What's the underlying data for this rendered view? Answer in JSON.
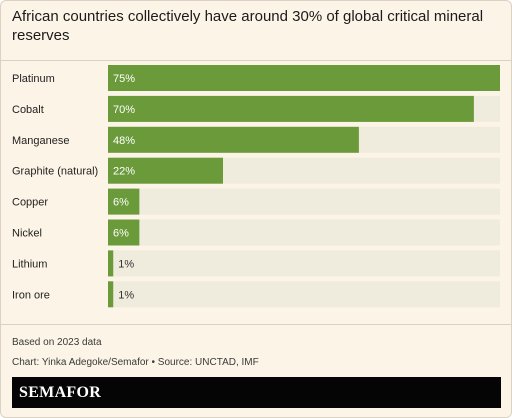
{
  "chart_data": {
    "type": "bar",
    "orientation": "horizontal",
    "title": "African countries collectively have around 30% of global critical mineral reserves",
    "categories": [
      "Platinum",
      "Cobalt",
      "Manganese",
      "Graphite (natural)",
      "Copper",
      "Nickel",
      "Lithium",
      "Iron ore"
    ],
    "values": [
      75,
      70,
      48,
      22,
      6,
      6,
      1,
      1
    ],
    "value_labels": [
      "75%",
      "70%",
      "48%",
      "22%",
      "6%",
      "6%",
      "1%",
      "1%"
    ],
    "xlim": [
      0,
      75
    ],
    "grid": false,
    "legend": "none",
    "colors": {
      "bar": "#6a9a3a",
      "track": "#efebdd",
      "label_on_bar": "#ffffff",
      "label_off_bar": "#333333"
    }
  },
  "notes": {
    "base": "Based on 2023 data",
    "credit": "Chart: Yinka Adegoke/Semafor • Source: UNCTAD, IMF"
  },
  "footer": {
    "logo": "SEMAFOR"
  }
}
